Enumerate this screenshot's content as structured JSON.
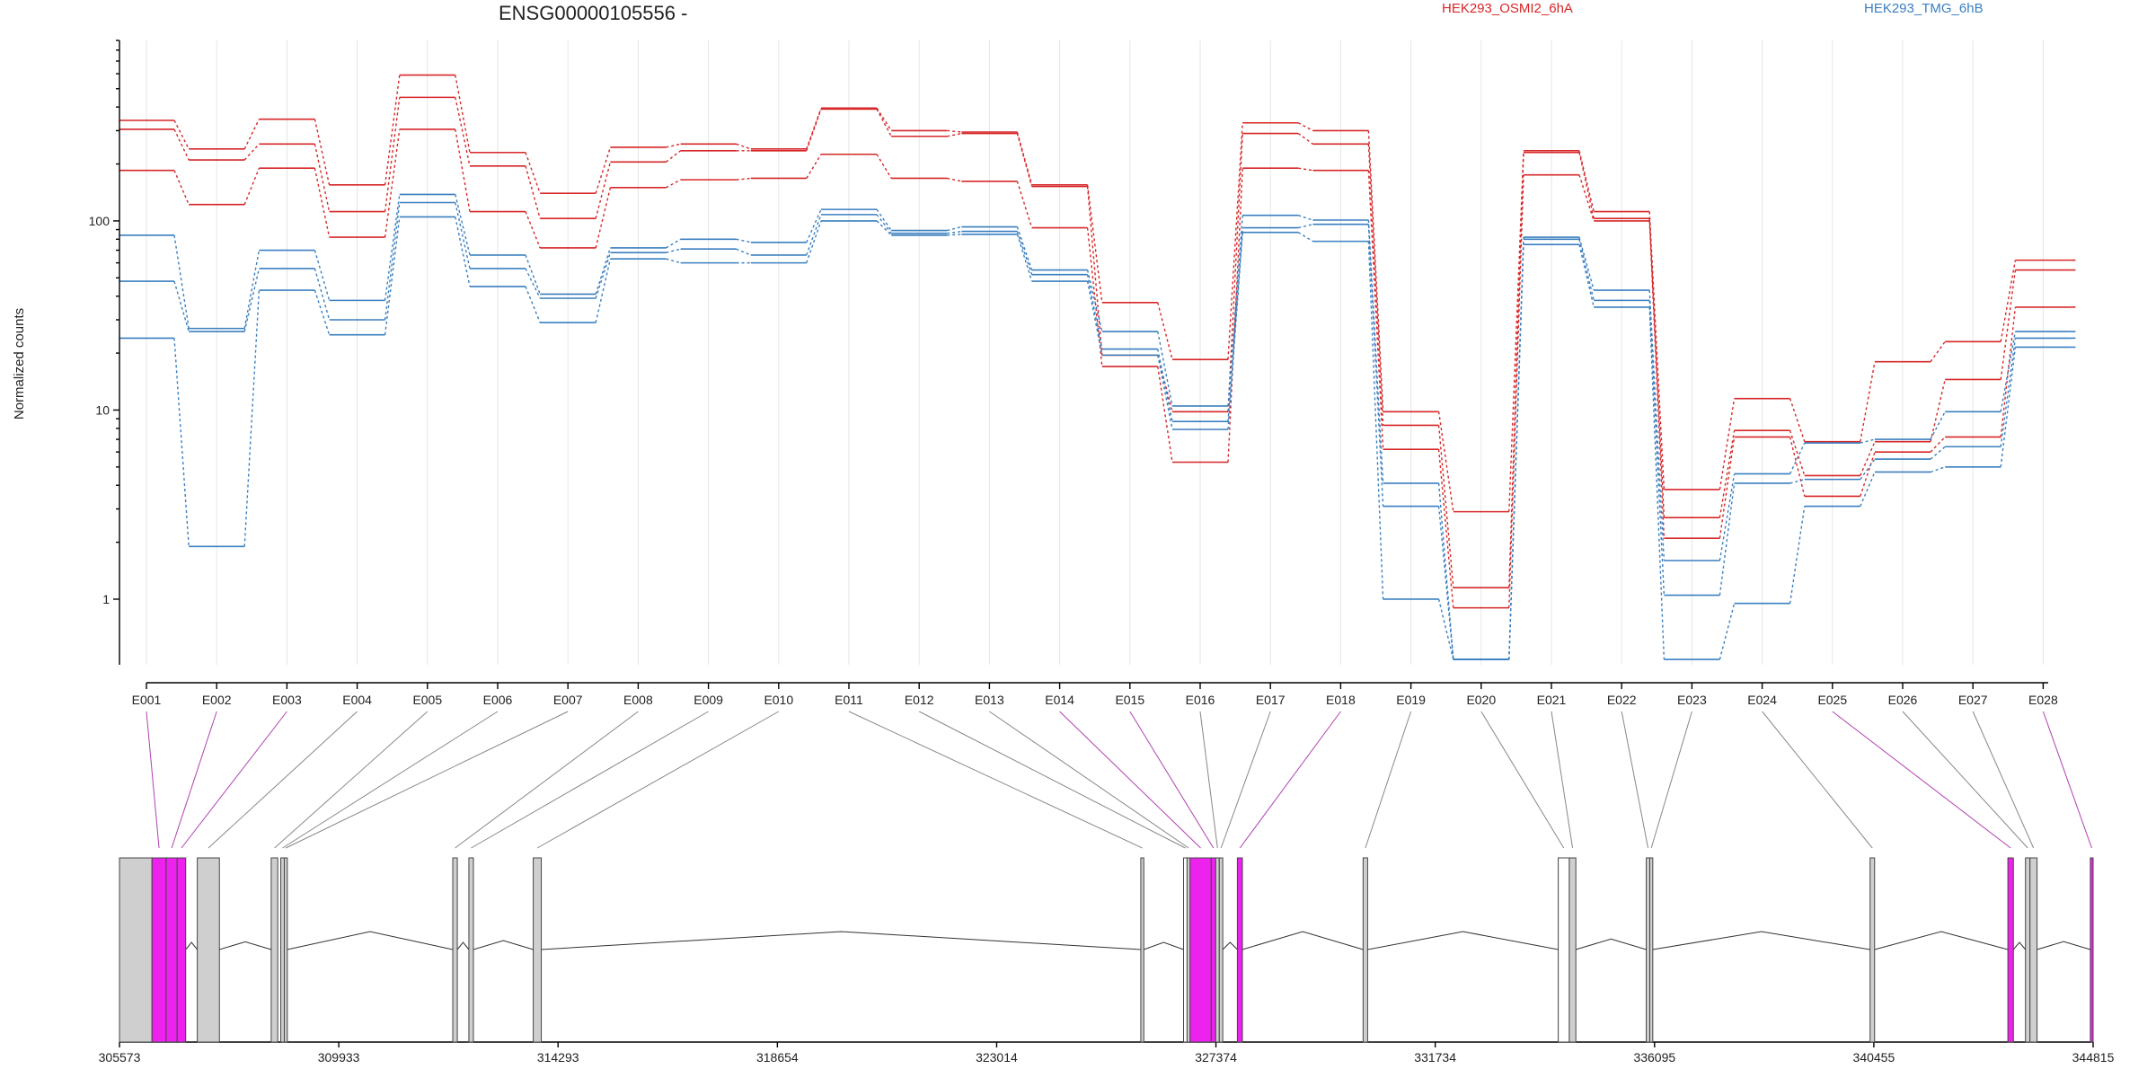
{
  "chart_data": {
    "type": "line",
    "title": "ENSG00000105556 -",
    "xlabel": "",
    "ylabel": "Normalized counts",
    "y_scale": "log",
    "y_ticks": [
      1,
      10,
      100
    ],
    "ylim": [
      0.45,
      900
    ],
    "grid": true,
    "legend_placement": "top",
    "legend": [
      {
        "label": "HEK293_OSMI2_6hA",
        "color": "#d62728"
      },
      {
        "label": "HEK293_TMG_6hB",
        "color": "#3a7fbf"
      }
    ],
    "categories": [
      "E001",
      "E002",
      "E003",
      "E004",
      "E005",
      "E006",
      "E007",
      "E008",
      "E009",
      "E010",
      "E011",
      "E012",
      "E013",
      "E014",
      "E015",
      "E016",
      "E017",
      "E018",
      "E019",
      "E020",
      "E021",
      "E022",
      "E023",
      "E024",
      "E025",
      "E026",
      "E027",
      "E028"
    ],
    "series": [
      {
        "group": "HEK293_OSMI2_6hA",
        "color": "#d62728",
        "values": [
          340,
          240,
          345,
          155,
          590,
          230,
          140,
          245,
          255,
          240,
          395,
          300,
          295,
          155,
          37,
          18.5,
          330,
          300,
          9.8,
          2.9,
          235,
          112,
          3.8,
          11.5,
          6.8,
          18,
          23,
          62
        ]
      },
      {
        "group": "HEK293_OSMI2_6hA",
        "color": "#d62728",
        "values": [
          305,
          210,
          255,
          112,
          450,
          195,
          103,
          205,
          235,
          235,
          390,
          280,
          290,
          152,
          19.5,
          9.8,
          290,
          255,
          8.3,
          1.15,
          230,
          103,
          2.7,
          7.8,
          4.5,
          6.8,
          14.5,
          55
        ]
      },
      {
        "group": "HEK293_OSMI2_6hA",
        "color": "#d62728",
        "values": [
          185,
          122,
          190,
          82,
          305,
          112,
          72,
          150,
          165,
          168,
          225,
          168,
          162,
          92,
          17,
          5.3,
          190,
          185,
          6.2,
          0.9,
          175,
          100,
          2.1,
          7.2,
          3.5,
          6,
          7.2,
          35
        ]
      },
      {
        "group": "HEK293_TMG_6hB",
        "color": "#3a7fbf",
        "values": [
          84,
          27,
          70,
          38,
          138,
          66,
          41,
          72,
          80,
          77,
          115,
          89,
          93,
          55,
          26,
          10.5,
          107,
          101,
          4.1,
          0.48,
          82,
          43,
          1.6,
          4.6,
          6.7,
          7,
          9.8,
          26
        ]
      },
      {
        "group": "HEK293_TMG_6hB",
        "color": "#3a7fbf",
        "values": [
          48,
          26,
          56,
          30,
          125,
          56,
          39,
          68,
          71,
          66,
          108,
          86,
          88,
          52,
          21,
          8.7,
          92,
          96,
          3.1,
          0.48,
          80,
          38,
          1.05,
          4.1,
          4.3,
          5.5,
          6.4,
          24
        ]
      },
      {
        "group": "HEK293_TMG_6hB",
        "color": "#3a7fbf",
        "values": [
          24,
          1.9,
          43,
          25,
          105,
          45,
          29,
          63,
          60,
          60,
          100,
          84,
          85,
          48,
          19.5,
          7.9,
          87,
          78,
          1,
          0.48,
          75,
          35,
          0.48,
          0.95,
          3.1,
          4.7,
          5,
          21.5
        ]
      }
    ],
    "genomic_axis": {
      "tick_labels": [
        "305573",
        "309933",
        "314293",
        "318654",
        "323014",
        "327374",
        "331734",
        "336095",
        "340455",
        "344815"
      ],
      "range": [
        305573,
        344815
      ]
    },
    "exons": [
      {
        "start": 305573,
        "end": 306220,
        "color": "#cfcfcf",
        "map": null
      },
      {
        "start": 306220,
        "end": 306500,
        "color": "#ee22ee",
        "map": "E001"
      },
      {
        "start": 306500,
        "end": 306720,
        "color": "#ee22ee",
        "map": "E002"
      },
      {
        "start": 306720,
        "end": 306890,
        "color": "#ee22ee",
        "map": "E003"
      },
      {
        "start": 307120,
        "end": 307560,
        "color": "#cfcfcf",
        "map": "E004"
      },
      {
        "start": 308590,
        "end": 308720,
        "color": "#cfcfcf",
        "map": "E005"
      },
      {
        "start": 308780,
        "end": 308850,
        "color": "#cfcfcf",
        "map": "E006"
      },
      {
        "start": 308850,
        "end": 308910,
        "color": "#cfcfcf",
        "map": "E007"
      },
      {
        "start": 312200,
        "end": 312290,
        "color": "#cfcfcf",
        "map": "E008"
      },
      {
        "start": 312520,
        "end": 312610,
        "color": "#cfcfcf",
        "map": "E009"
      },
      {
        "start": 313800,
        "end": 313960,
        "color": "#cfcfcf",
        "map": "E010"
      },
      {
        "start": 325880,
        "end": 325940,
        "color": "#cfcfcf",
        "map": "E011"
      },
      {
        "start": 326730,
        "end": 326800,
        "color": "#ffffff",
        "map": "E012"
      },
      {
        "start": 326800,
        "end": 326860,
        "color": "#cfcfcf",
        "map": "E013"
      },
      {
        "start": 326860,
        "end": 327280,
        "color": "#ee22ee",
        "map": "E014"
      },
      {
        "start": 327280,
        "end": 327370,
        "color": "#ee22ee",
        "map": "E015"
      },
      {
        "start": 327370,
        "end": 327440,
        "color": "#cfcfcf",
        "map": "E016"
      },
      {
        "start": 327440,
        "end": 327510,
        "color": "#cfcfcf",
        "map": "E017"
      },
      {
        "start": 327800,
        "end": 327900,
        "color": "#ee22ee",
        "map": "E018"
      },
      {
        "start": 330300,
        "end": 330390,
        "color": "#cfcfcf",
        "map": "E019"
      },
      {
        "start": 334180,
        "end": 334400,
        "color": "#ffffff",
        "map": "E020"
      },
      {
        "start": 334400,
        "end": 334530,
        "color": "#cfcfcf",
        "map": "E021"
      },
      {
        "start": 335930,
        "end": 336000,
        "color": "#cfcfcf",
        "map": "E022"
      },
      {
        "start": 336000,
        "end": 336060,
        "color": "#cfcfcf",
        "map": "E023"
      },
      {
        "start": 340380,
        "end": 340470,
        "color": "#cfcfcf",
        "map": "E024"
      },
      {
        "start": 343120,
        "end": 343230,
        "color": "#ee22ee",
        "map": "E025"
      },
      {
        "start": 343470,
        "end": 343560,
        "color": "#cfcfcf",
        "map": "E026"
      },
      {
        "start": 343560,
        "end": 343700,
        "color": "#cfcfcf",
        "map": "E027"
      },
      {
        "start": 344760,
        "end": 344815,
        "color": "#ee22ee",
        "map": "E028"
      }
    ],
    "colors": {
      "highlight": "#ee22ee",
      "constitutive": "#cfcfcf",
      "connector_highlight": "#b040b0",
      "connector": "#888888"
    }
  }
}
